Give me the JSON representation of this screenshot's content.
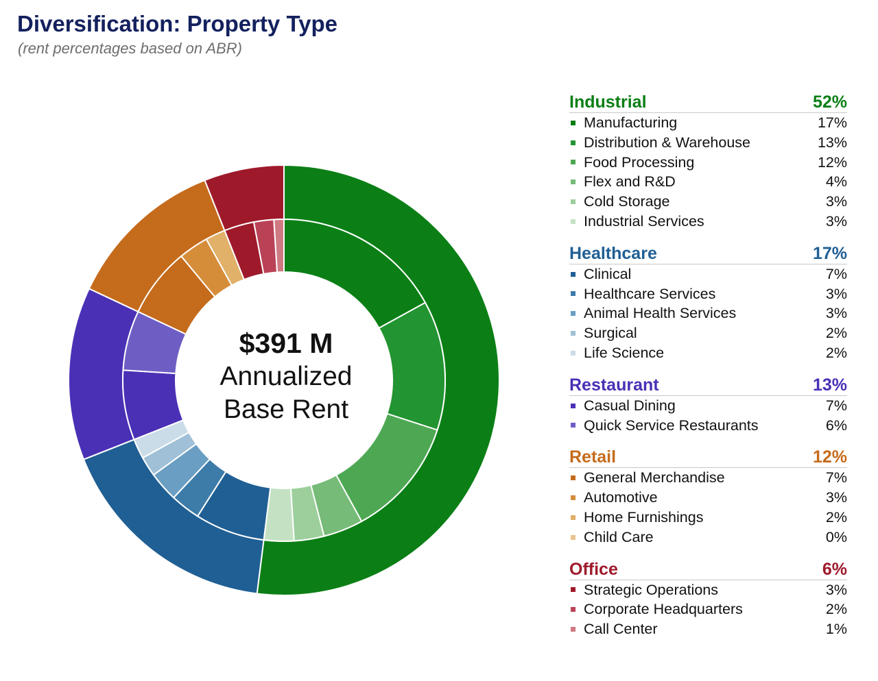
{
  "header": {
    "title": "Diversification: Property Type",
    "subtitle": "(rent percentages based on ABR)"
  },
  "center": {
    "total": "$391 M",
    "line1": "Annualized",
    "line2": "Base Rent"
  },
  "chart_data": {
    "type": "donut",
    "title": "Diversification: Property Type",
    "subtitle": "(rent percentages based on ABR)",
    "unit": "%",
    "groups": [
      {
        "name": "Industrial",
        "value": 52,
        "label": "52%",
        "color": "#0b7f16",
        "items": [
          {
            "name": "Manufacturing",
            "value": 17,
            "label": "17%",
            "color": "#0b7f16"
          },
          {
            "name": "Distribution & Warehouse",
            "value": 13,
            "label": "13%",
            "color": "#229431"
          },
          {
            "name": "Food Processing",
            "value": 12,
            "label": "12%",
            "color": "#4ea853"
          },
          {
            "name": "Flex and R&D",
            "value": 4,
            "label": "4%",
            "color": "#76bb77"
          },
          {
            "name": "Cold Storage",
            "value": 3,
            "label": "3%",
            "color": "#9ccf9c"
          },
          {
            "name": "Industrial Services",
            "value": 3,
            "label": "3%",
            "color": "#c4e2c3"
          }
        ]
      },
      {
        "name": "Healthcare",
        "value": 17,
        "label": "17%",
        "color": "#205f94",
        "items": [
          {
            "name": "Clinical",
            "value": 7,
            "label": "7%",
            "color": "#205f94"
          },
          {
            "name": "Healthcare Services",
            "value": 3,
            "label": "3%",
            "color": "#3d7ba9"
          },
          {
            "name": "Animal Health Services",
            "value": 3,
            "label": "3%",
            "color": "#6a9ec2"
          },
          {
            "name": "Surgical",
            "value": 2,
            "label": "2%",
            "color": "#9fc0d6"
          },
          {
            "name": "Life Science",
            "value": 2,
            "label": "2%",
            "color": "#cadce8"
          }
        ]
      },
      {
        "name": "Restaurant",
        "value": 13,
        "label": "13%",
        "color": "#4a30b5",
        "items": [
          {
            "name": "Casual Dining",
            "value": 7,
            "label": "7%",
            "color": "#4a30b5"
          },
          {
            "name": "Quick Service Restaurants",
            "value": 6,
            "label": "6%",
            "color": "#6e5ec4"
          }
        ]
      },
      {
        "name": "Retail",
        "value": 12,
        "label": "12%",
        "color": "#c56b1c",
        "items": [
          {
            "name": "General Merchandise",
            "value": 7,
            "label": "7%",
            "color": "#c56b1c"
          },
          {
            "name": "Automotive",
            "value": 3,
            "label": "3%",
            "color": "#d68d3a"
          },
          {
            "name": "Home Furnishings",
            "value": 2,
            "label": "2%",
            "color": "#e1b069"
          },
          {
            "name": "Child Care",
            "value": 0,
            "label": "0%",
            "color": "#e8c48e"
          }
        ]
      },
      {
        "name": "Office",
        "value": 6,
        "label": "6%",
        "color": "#9e1a2b",
        "items": [
          {
            "name": "Strategic Operations",
            "value": 3,
            "label": "3%",
            "color": "#9e1a2b"
          },
          {
            "name": "Corporate Headquarters",
            "value": 2,
            "label": "2%",
            "color": "#b94257"
          },
          {
            "name": "Call Center",
            "value": 1,
            "label": "1%",
            "color": "#cf7a82"
          }
        ]
      }
    ]
  }
}
